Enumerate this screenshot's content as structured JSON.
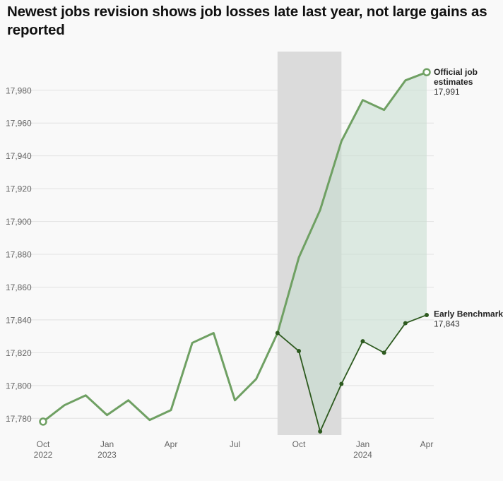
{
  "chart_data": {
    "type": "line",
    "title": "Newest jobs revision shows job losses late last year, not large gains as reported",
    "ylim": [
      17770,
      17996
    ],
    "y_ticks": [
      17780,
      17800,
      17820,
      17840,
      17860,
      17880,
      17900,
      17920,
      17940,
      17960,
      17980
    ],
    "y_tick_labels": [
      "17,780",
      "17,800",
      "17,820",
      "17,840",
      "17,860",
      "17,880",
      "17,900",
      "17,920",
      "17,940",
      "17,960",
      "17,980"
    ],
    "x_ticks": [
      {
        "month": 0,
        "label": "Oct",
        "sublabel": "2022"
      },
      {
        "month": 3,
        "label": "Jan",
        "sublabel": "2023"
      },
      {
        "month": 6,
        "label": "Apr",
        "sublabel": ""
      },
      {
        "month": 9,
        "label": "Jul",
        "sublabel": ""
      },
      {
        "month": 12,
        "label": "Oct",
        "sublabel": ""
      },
      {
        "month": 15,
        "label": "Jan",
        "sublabel": "2024"
      },
      {
        "month": 18,
        "label": "Apr",
        "sublabel": ""
      }
    ],
    "x_range_months": [
      0,
      18
    ],
    "shaded_period_months": [
      11,
      14
    ],
    "grid": true,
    "series": [
      {
        "name": "Official job estimates",
        "end_label": "17,991",
        "color": "#6fa063",
        "x": [
          0,
          1,
          2,
          3,
          4,
          5,
          6,
          7,
          8,
          9,
          10,
          11,
          12,
          13,
          14,
          15,
          16,
          17,
          18
        ],
        "values": [
          17778,
          17788,
          17794,
          17782,
          17791,
          17779,
          17785,
          17826,
          17832,
          17791,
          17804,
          17832,
          17878,
          17907,
          17949,
          17974,
          17968,
          17986,
          17991
        ]
      },
      {
        "name": "Early Benchmark",
        "end_label": "17,843",
        "color": "#2d5a1f",
        "x": [
          11,
          12,
          13,
          14,
          15,
          16,
          17,
          18
        ],
        "values": [
          17832,
          17821,
          17772,
          17801,
          17827,
          17820,
          17838,
          17843
        ]
      }
    ],
    "fill_between_color": "#c5dccd"
  }
}
